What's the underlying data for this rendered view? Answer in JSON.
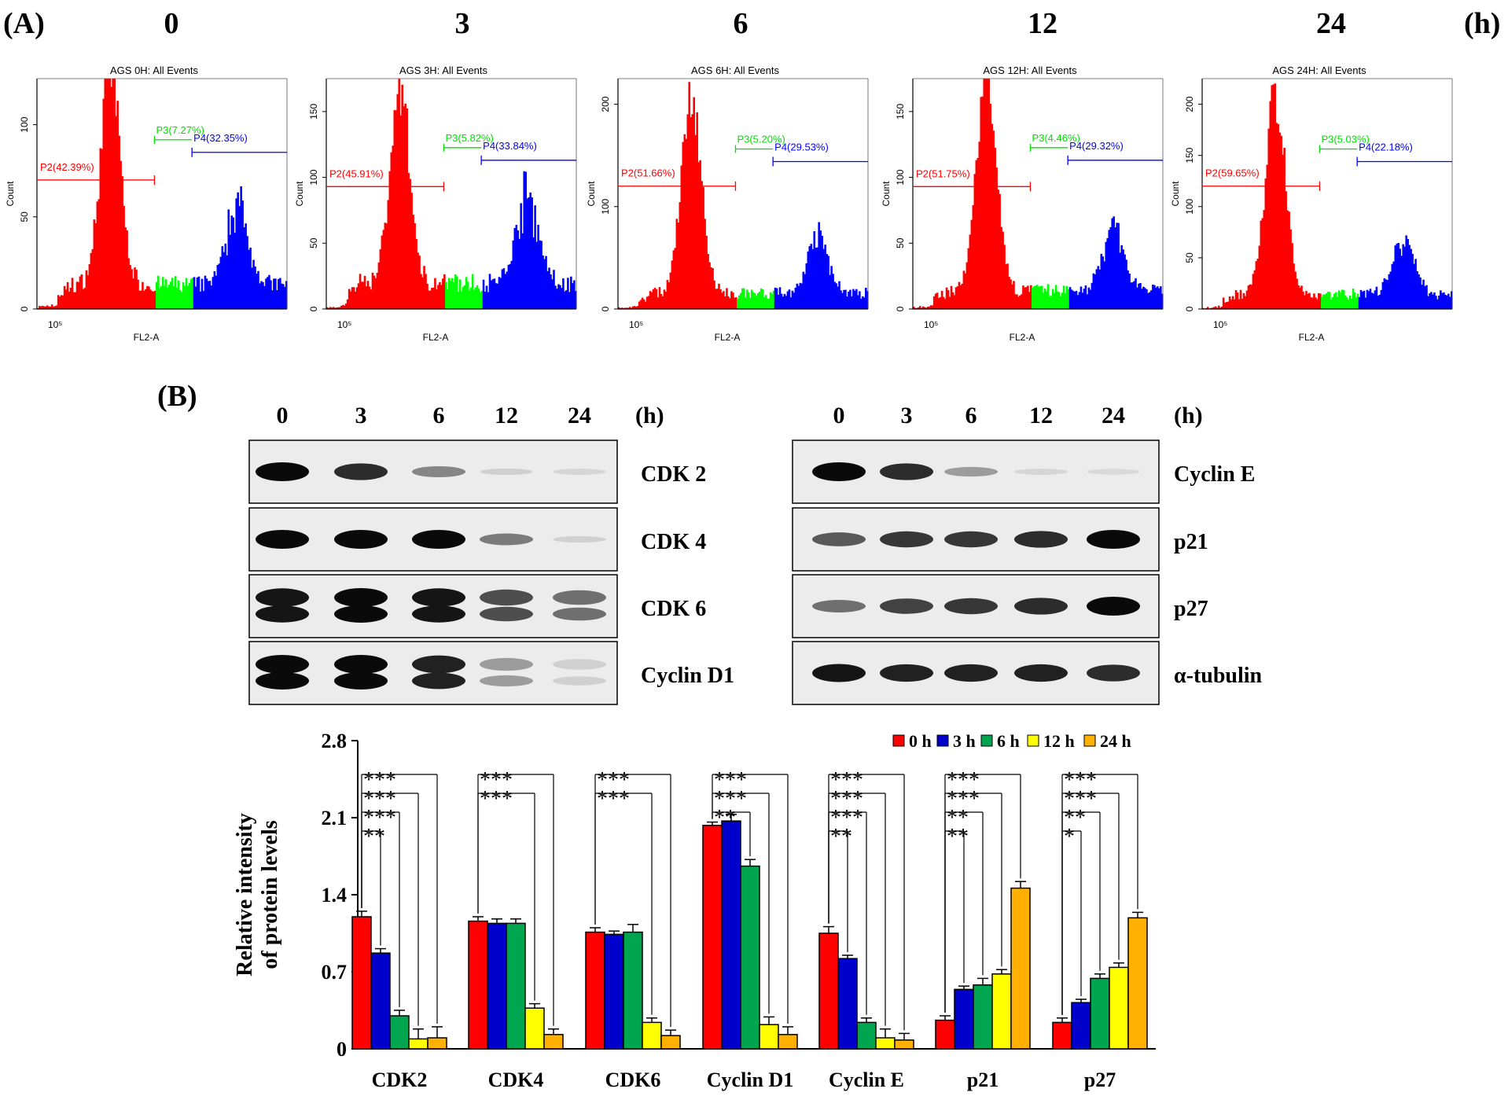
{
  "panel_a": {
    "label": "(A)",
    "unit": "(h)",
    "xlabel": "FL2-A",
    "ylabel": "Count",
    "x_tick": "10⁵",
    "colors": {
      "p2": "#ff0000",
      "p3": "#00e000",
      "p4": "#0000ff",
      "g1": "#ff0000",
      "s": "#00ff00",
      "g2m": "#0000ff"
    },
    "plots": [
      {
        "time": "0",
        "title": "AGS 0H: All Events",
        "ymax": 125,
        "yticks": [
          "0",
          "50",
          "100"
        ],
        "yvals": [
          0,
          50,
          100
        ],
        "p2": "P2(42.39%)",
        "p3": "P3(7.27%)",
        "p4": "P4(32.35%)",
        "peak1": 113,
        "peak2": 47,
        "gate_y": 70,
        "gate_y2": 85
      },
      {
        "time": "3",
        "title": "AGS 3H: All Events",
        "ymax": 175,
        "yticks": [
          "0",
          "50",
          "100",
          "150"
        ],
        "yvals": [
          0,
          50,
          100,
          150
        ],
        "p2": "P2(45.91%)",
        "p3": "P3(5.82%)",
        "p4": "P4(33.84%)",
        "peak1": 148,
        "peak2": 70,
        "gate_y": 93,
        "gate_y2": 113
      },
      {
        "time": "6",
        "title": "AGS 6H: All Events",
        "ymax": 225,
        "yticks": [
          "0",
          "100",
          "200"
        ],
        "yvals": [
          0,
          100,
          200
        ],
        "p2": "P2(51.66%)",
        "p3": "P3(5.20%)",
        "p4": "P4(29.53%)",
        "peak1": 190,
        "peak2": 55,
        "gate_y": 120,
        "gate_y2": 144
      },
      {
        "time": "12",
        "title": "AGS 12H: All Events",
        "ymax": 175,
        "yticks": [
          "0",
          "50",
          "100",
          "150"
        ],
        "yvals": [
          0,
          50,
          100,
          150
        ],
        "p2": "P2(51.75%)",
        "p3": "P3(4.46%)",
        "p4": "P4(29.32%)",
        "peak1": 160,
        "peak2": 50,
        "gate_y": 93,
        "gate_y2": 113
      },
      {
        "time": "24",
        "title": "AGS 24H: All Events",
        "ymax": 225,
        "yticks": [
          "0",
          "50",
          "100",
          "150",
          "200"
        ],
        "yvals": [
          0,
          50,
          100,
          150,
          200
        ],
        "p2": "P2(59.65%)",
        "p3": "P3(5.03%)",
        "p4": "P4(22.18%)",
        "peak1": 195,
        "peak2": 52,
        "gate_y": 120,
        "gate_y2": 144
      }
    ]
  },
  "panel_b": {
    "label": "(B)",
    "unit": "(h)",
    "times": [
      "0",
      "3",
      "6",
      "12",
      "24"
    ],
    "left_blots": [
      {
        "name": "CDK 2",
        "intensity": [
          1.0,
          0.85,
          0.45,
          0.12,
          0.1
        ],
        "double": false
      },
      {
        "name": "CDK 4",
        "intensity": [
          1.0,
          1.0,
          1.0,
          0.5,
          0.12
        ],
        "double": false
      },
      {
        "name": "CDK 6",
        "intensity": [
          0.95,
          1.0,
          0.95,
          0.7,
          0.55
        ],
        "double": true
      },
      {
        "name": "Cyclin D1",
        "intensity": [
          1.0,
          1.0,
          0.9,
          0.35,
          0.12
        ],
        "double": true
      }
    ],
    "right_blots": [
      {
        "name": "Cyclin E",
        "intensity": [
          1.0,
          0.85,
          0.35,
          0.1,
          0.08
        ],
        "double": false
      },
      {
        "name": "p21",
        "intensity": [
          0.65,
          0.8,
          0.8,
          0.85,
          1.0
        ],
        "double": false
      },
      {
        "name": "p27",
        "intensity": [
          0.55,
          0.75,
          0.8,
          0.85,
          1.0
        ],
        "double": false
      },
      {
        "name": "α-tubulin",
        "intensity": [
          0.95,
          0.9,
          0.9,
          0.9,
          0.85
        ],
        "double": false
      }
    ]
  },
  "chart_data": {
    "type": "bar",
    "ylabel": "Relative intensity of protein levels",
    "ylim": [
      0,
      2.8
    ],
    "yticks": [
      0,
      0.7,
      1.4,
      2.1,
      2.8
    ],
    "ytick_labels": [
      "0",
      "0.7",
      "1.4",
      "2.1",
      "2.8"
    ],
    "categories": [
      "CDK2",
      "CDK4",
      "CDK6",
      "Cyclin D1",
      "Cyclin E",
      "p21",
      "p27"
    ],
    "legend_position": "top-right",
    "series": [
      {
        "name": "0 h",
        "color": "#ff0000",
        "values": [
          1.2,
          1.16,
          1.06,
          2.03,
          1.05,
          0.26,
          0.24
        ],
        "errors": [
          0.05,
          0.04,
          0.04,
          0.03,
          0.06,
          0.04,
          0.04
        ]
      },
      {
        "name": "3 h",
        "color": "#0000cc",
        "values": [
          0.87,
          1.14,
          1.04,
          2.07,
          0.82,
          0.54,
          0.42
        ],
        "errors": [
          0.04,
          0.04,
          0.03,
          0.06,
          0.03,
          0.03,
          0.03
        ]
      },
      {
        "name": "6 h",
        "color": "#00a550",
        "values": [
          0.3,
          1.14,
          1.06,
          1.66,
          0.24,
          0.58,
          0.64
        ],
        "errors": [
          0.05,
          0.04,
          0.07,
          0.06,
          0.04,
          0.06,
          0.04
        ]
      },
      {
        "name": "12 h",
        "color": "#ffff00",
        "values": [
          0.09,
          0.37,
          0.24,
          0.22,
          0.1,
          0.68,
          0.74
        ],
        "errors": [
          0.09,
          0.04,
          0.04,
          0.07,
          0.08,
          0.04,
          0.04
        ]
      },
      {
        "name": "24 h",
        "color": "#ffb000",
        "values": [
          0.1,
          0.13,
          0.12,
          0.13,
          0.08,
          1.46,
          1.19
        ],
        "errors": [
          0.1,
          0.05,
          0.05,
          0.07,
          0.06,
          0.06,
          0.05
        ]
      }
    ],
    "significance": [
      [
        "**",
        "***",
        "***",
        "***"
      ],
      [
        "***",
        "***"
      ],
      [
        "***",
        "***"
      ],
      [
        "**",
        "***",
        "***"
      ],
      [
        "**",
        "***",
        "***",
        "***"
      ],
      [
        "**",
        "**",
        "***",
        "***"
      ],
      [
        "*",
        "**",
        "***",
        "***"
      ]
    ],
    "significance_targets": [
      [
        1,
        2,
        3,
        4
      ],
      [
        3,
        4
      ],
      [
        3,
        4
      ],
      [
        2,
        3,
        4
      ],
      [
        1,
        2,
        3,
        4
      ],
      [
        1,
        2,
        3,
        4
      ],
      [
        1,
        2,
        3,
        4
      ]
    ]
  }
}
